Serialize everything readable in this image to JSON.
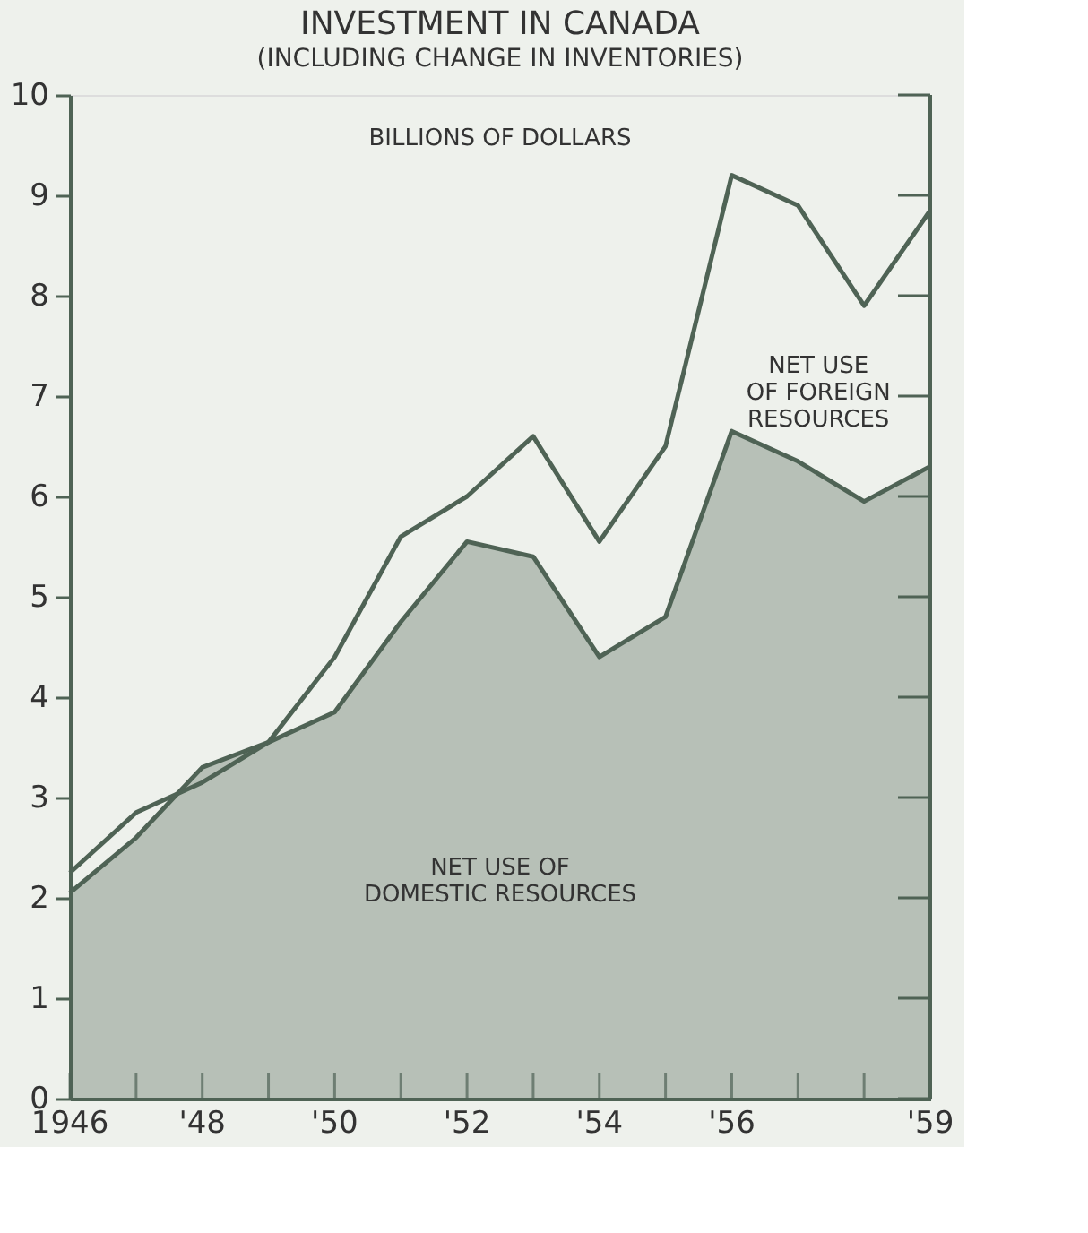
{
  "chart_data": {
    "type": "area",
    "title": "INVESTMENT IN CANADA",
    "subtitle": "(INCLUDING CHANGE IN INVENTORIES)",
    "ylabel": "BILLIONS OF DOLLARS",
    "x": [
      1946,
      1947,
      1948,
      1949,
      1950,
      1951,
      1952,
      1953,
      1954,
      1955,
      1956,
      1957,
      1958,
      1959
    ],
    "series": [
      {
        "color": "#4f6355",
        "values": [
          2.05,
          2.6,
          3.3,
          3.55,
          3.85,
          4.75,
          5.55,
          5.4,
          4.4,
          4.8,
          6.65,
          6.35,
          5.95,
          6.3
        ]
      },
      {
        "type": "line",
        "color": "#4f6355",
        "values": [
          2.25,
          2.85,
          3.15,
          3.55,
          4.4,
          5.6,
          6.0,
          6.6,
          5.55,
          6.5,
          9.2,
          8.9,
          7.9,
          8.85
        ]
      }
    ],
    "xlim": [
      1946,
      1959
    ],
    "xticks": [
      {
        "value": 1946,
        "label": "1946"
      },
      {
        "value": 1947,
        "label": null
      },
      {
        "value": 1948,
        "label": "'48"
      },
      {
        "value": 1949,
        "label": null
      },
      {
        "value": 1950,
        "label": "'50"
      },
      {
        "value": 1951,
        "label": null
      },
      {
        "value": 1952,
        "label": "'52"
      },
      {
        "value": 1953,
        "label": null
      },
      {
        "value": 1954,
        "label": "'54"
      },
      {
        "value": 1955,
        "label": null
      },
      {
        "value": 1956,
        "label": "'56"
      },
      {
        "value": 1957,
        "label": null
      },
      {
        "value": 1958,
        "label": null
      },
      {
        "value": 1959,
        "label": "'59"
      }
    ],
    "ylim": [
      0,
      10
    ],
    "yticks": [
      0,
      1,
      2,
      3,
      4,
      5,
      6,
      7,
      8,
      9,
      10
    ],
    "annotations": [
      "NET USE\nOF FOREIGN\nRESOURCES",
      "NET USE OF\nDOMESTIC RESOURCES"
    ],
    "grid": false
  }
}
